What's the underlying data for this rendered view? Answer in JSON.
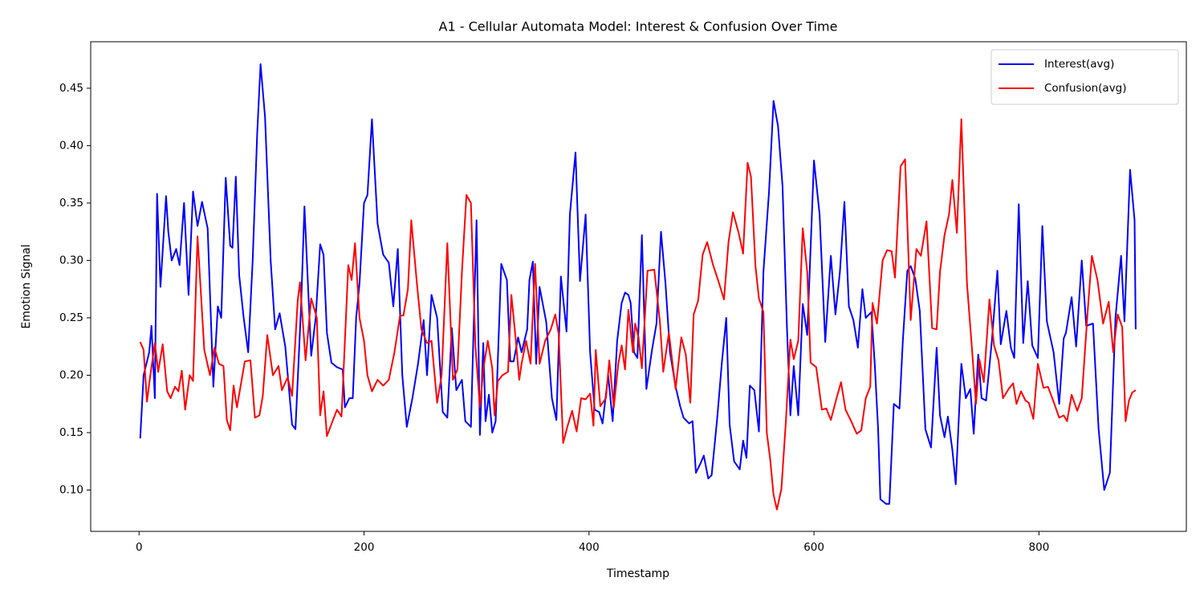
{
  "chart_data": {
    "type": "line",
    "title": "A1 - Cellular Automata Model: Interest & Confusion Over Time",
    "xlabel": "Timestamp",
    "ylabel": "Emotion Signal",
    "xlim": [
      -43,
      931
    ],
    "ylim": [
      0.064,
      0.4905
    ],
    "xticks": [
      0,
      200,
      400,
      600,
      800
    ],
    "yticks": [
      {
        "value": 0.1,
        "label": "0.10"
      },
      {
        "value": 0.15,
        "label": "0.15"
      },
      {
        "value": 0.2,
        "label": "0.20"
      },
      {
        "value": 0.25,
        "label": "0.25"
      },
      {
        "value": 0.3,
        "label": "0.30"
      },
      {
        "value": 0.35,
        "label": "0.35"
      },
      {
        "value": 0.4,
        "label": "0.40"
      },
      {
        "value": 0.45,
        "label": "0.45"
      }
    ],
    "grid": false,
    "legend": "upper right",
    "series": [
      {
        "name": "Interest(avg)",
        "color": "#0000ff",
        "x": [
          1,
          4,
          9,
          11,
          14,
          16,
          19,
          24,
          26,
          29,
          33,
          36,
          40,
          44,
          48,
          52,
          56,
          61,
          66,
          70,
          73,
          77,
          81,
          83,
          86,
          89,
          93,
          97,
          101,
          105,
          108,
          112,
          117,
          121,
          125,
          130,
          136,
          139,
          144,
          147,
          151,
          153,
          157,
          161,
          164,
          167,
          171,
          176,
          181,
          183,
          187,
          190,
          193,
          196,
          200,
          203,
          207,
          212,
          217,
          222,
          226,
          230,
          234,
          238,
          243,
          248,
          253,
          256,
          260,
          265,
          270,
          274,
          278,
          282,
          287,
          290,
          295,
          300,
          303,
          306,
          308,
          311,
          314,
          317,
          322,
          327,
          330,
          333,
          337,
          340,
          345,
          347,
          350,
          353,
          356,
          362,
          367,
          371,
          375,
          380,
          383,
          388,
          392,
          397,
          401,
          405,
          409,
          412,
          417,
          421,
          425,
          429,
          432,
          435,
          437,
          440,
          443,
          447,
          451,
          456,
          460,
          464,
          468,
          472,
          477,
          481,
          484,
          489,
          492,
          495,
          499,
          502,
          506,
          509,
          514,
          518,
          522,
          525,
          529,
          534,
          537,
          540,
          543,
          547,
          551,
          555,
          560,
          564,
          568,
          572,
          576,
          579,
          582,
          586,
          590,
          594,
          600,
          605,
          610,
          615,
          619,
          623,
          627,
          631,
          635,
          639,
          643,
          646,
          651,
          654,
          657,
          659,
          664,
          667,
          671,
          676,
          679,
          683,
          686,
          690,
          694,
          699,
          704,
          709,
          712,
          716,
          719,
          723,
          726,
          731,
          735,
          739,
          742,
          746,
          749,
          753,
          758,
          763,
          766,
          771,
          775,
          778,
          782,
          786,
          790,
          794,
          799,
          803,
          807,
          813,
          818,
          822,
          824,
          829,
          833,
          838,
          842,
          848,
          853,
          858,
          863,
          868,
          873,
          876,
          881,
          885,
          886
        ],
        "values": [
          0.145,
          0.2,
          0.22,
          0.243,
          0.18,
          0.358,
          0.277,
          0.356,
          0.325,
          0.3,
          0.31,
          0.296,
          0.35,
          0.27,
          0.36,
          0.33,
          0.351,
          0.328,
          0.19,
          0.26,
          0.25,
          0.372,
          0.313,
          0.311,
          0.373,
          0.287,
          0.25,
          0.22,
          0.3,
          0.41,
          0.471,
          0.425,
          0.3,
          0.24,
          0.254,
          0.225,
          0.157,
          0.153,
          0.26,
          0.347,
          0.26,
          0.217,
          0.25,
          0.314,
          0.305,
          0.237,
          0.211,
          0.207,
          0.205,
          0.172,
          0.18,
          0.18,
          0.25,
          0.28,
          0.35,
          0.357,
          0.423,
          0.332,
          0.305,
          0.298,
          0.26,
          0.31,
          0.2,
          0.155,
          0.18,
          0.21,
          0.248,
          0.2,
          0.27,
          0.25,
          0.168,
          0.163,
          0.241,
          0.187,
          0.196,
          0.16,
          0.155,
          0.335,
          0.148,
          0.228,
          0.16,
          0.183,
          0.15,
          0.16,
          0.297,
          0.283,
          0.212,
          0.212,
          0.233,
          0.22,
          0.24,
          0.283,
          0.299,
          0.21,
          0.277,
          0.246,
          0.18,
          0.161,
          0.286,
          0.238,
          0.34,
          0.394,
          0.282,
          0.34,
          0.22,
          0.17,
          0.168,
          0.158,
          0.2,
          0.16,
          0.23,
          0.263,
          0.272,
          0.27,
          0.263,
          0.22,
          0.215,
          0.322,
          0.188,
          0.222,
          0.245,
          0.325,
          0.28,
          0.22,
          0.19,
          0.173,
          0.163,
          0.158,
          0.16,
          0.115,
          0.123,
          0.13,
          0.11,
          0.113,
          0.163,
          0.21,
          0.25,
          0.157,
          0.125,
          0.118,
          0.143,
          0.128,
          0.191,
          0.187,
          0.151,
          0.29,
          0.36,
          0.439,
          0.417,
          0.365,
          0.24,
          0.165,
          0.208,
          0.165,
          0.262,
          0.235,
          0.387,
          0.34,
          0.229,
          0.304,
          0.253,
          0.29,
          0.351,
          0.26,
          0.248,
          0.224,
          0.275,
          0.25,
          0.255,
          0.21,
          0.153,
          0.092,
          0.088,
          0.088,
          0.175,
          0.171,
          0.23,
          0.291,
          0.295,
          0.284,
          0.256,
          0.153,
          0.137,
          0.224,
          0.165,
          0.146,
          0.164,
          0.135,
          0.105,
          0.21,
          0.18,
          0.188,
          0.149,
          0.218,
          0.18,
          0.178,
          0.229,
          0.291,
          0.227,
          0.256,
          0.224,
          0.215,
          0.349,
          0.228,
          0.282,
          0.226,
          0.215,
          0.33,
          0.247,
          0.22,
          0.175,
          0.232,
          0.237,
          0.268,
          0.225,
          0.3,
          0.243,
          0.245,
          0.153,
          0.1,
          0.115,
          0.25,
          0.304,
          0.247,
          0.379,
          0.335,
          0.24
        ]
      },
      {
        "name": "Confusion(avg)",
        "color": "#ff0000",
        "x": [
          1,
          4,
          7,
          10,
          14,
          17,
          21,
          25,
          28,
          32,
          35,
          38,
          41,
          45,
          48,
          52,
          58,
          63,
          67,
          71,
          75,
          78,
          81,
          84,
          87,
          94,
          99,
          103,
          107,
          110,
          114,
          119,
          124,
          127,
          132,
          136,
          141,
          143,
          148,
          153,
          158,
          161,
          164,
          167,
          172,
          176,
          180,
          186,
          189,
          192,
          196,
          200,
          203,
          207,
          212,
          217,
          222,
          227,
          232,
          235,
          239,
          242,
          247,
          251,
          256,
          260,
          265,
          269,
          274,
          279,
          283,
          287,
          291,
          295,
          299,
          303,
          306,
          310,
          314,
          316,
          319,
          323,
          328,
          331,
          335,
          338,
          340,
          344,
          348,
          352,
          356,
          361,
          366,
          370,
          373,
          377,
          381,
          385,
          389,
          393,
          397,
          401,
          404,
          406,
          410,
          415,
          418,
          422,
          426,
          429,
          432,
          435,
          439,
          441,
          444,
          447,
          452,
          458,
          463,
          466,
          471,
          477,
          482,
          486,
          490,
          493,
          497,
          501,
          505,
          510,
          515,
          520,
          524,
          528,
          533,
          537,
          541,
          544,
          548,
          551,
          555,
          558,
          561,
          564,
          567,
          571,
          575,
          579,
          582,
          586,
          590,
          594,
          597,
          602,
          607,
          611,
          615,
          620,
          624,
          628,
          633,
          638,
          642,
          646,
          650,
          652,
          656,
          661,
          665,
          669,
          672,
          677,
          681,
          686,
          691,
          695,
          700,
          705,
          709,
          712,
          716,
          720,
          723,
          727,
          731,
          736,
          740,
          744,
          747,
          751,
          756,
          760,
          764,
          768,
          773,
          777,
          780,
          784,
          788,
          791,
          795,
          799,
          804,
          808,
          813,
          818,
          822,
          825,
          829,
          834,
          838,
          843,
          847,
          852,
          857,
          862,
          866,
          870,
          874,
          877,
          880,
          883,
          886
        ],
        "values": [
          0.229,
          0.222,
          0.177,
          0.2,
          0.228,
          0.203,
          0.227,
          0.186,
          0.18,
          0.19,
          0.186,
          0.204,
          0.17,
          0.2,
          0.195,
          0.321,
          0.222,
          0.2,
          0.224,
          0.21,
          0.208,
          0.161,
          0.152,
          0.191,
          0.172,
          0.212,
          0.213,
          0.163,
          0.165,
          0.182,
          0.235,
          0.2,
          0.208,
          0.187,
          0.198,
          0.182,
          0.265,
          0.281,
          0.213,
          0.267,
          0.25,
          0.165,
          0.186,
          0.147,
          0.16,
          0.17,
          0.164,
          0.296,
          0.283,
          0.315,
          0.25,
          0.23,
          0.2,
          0.186,
          0.196,
          0.191,
          0.196,
          0.22,
          0.252,
          0.252,
          0.275,
          0.335,
          0.28,
          0.24,
          0.228,
          0.23,
          0.176,
          0.2,
          0.315,
          0.196,
          0.205,
          0.29,
          0.357,
          0.35,
          0.225,
          0.172,
          0.205,
          0.23,
          0.206,
          0.165,
          0.195,
          0.2,
          0.203,
          0.27,
          0.23,
          0.196,
          0.21,
          0.23,
          0.21,
          0.297,
          0.21,
          0.23,
          0.24,
          0.253,
          0.236,
          0.141,
          0.156,
          0.169,
          0.151,
          0.18,
          0.179,
          0.184,
          0.156,
          0.222,
          0.173,
          0.18,
          0.213,
          0.172,
          0.21,
          0.226,
          0.205,
          0.257,
          0.22,
          0.245,
          0.233,
          0.206,
          0.291,
          0.292,
          0.247,
          0.203,
          0.237,
          0.188,
          0.233,
          0.218,
          0.176,
          0.253,
          0.265,
          0.305,
          0.316,
          0.297,
          0.282,
          0.266,
          0.316,
          0.342,
          0.324,
          0.306,
          0.385,
          0.373,
          0.295,
          0.267,
          0.255,
          0.15,
          0.127,
          0.096,
          0.083,
          0.101,
          0.16,
          0.231,
          0.214,
          0.23,
          0.328,
          0.29,
          0.211,
          0.207,
          0.17,
          0.171,
          0.161,
          0.18,
          0.194,
          0.17,
          0.16,
          0.149,
          0.152,
          0.18,
          0.19,
          0.263,
          0.245,
          0.3,
          0.309,
          0.308,
          0.285,
          0.382,
          0.388,
          0.248,
          0.31,
          0.304,
          0.334,
          0.241,
          0.24,
          0.29,
          0.322,
          0.34,
          0.37,
          0.324,
          0.423,
          0.28,
          0.229,
          0.175,
          0.214,
          0.194,
          0.266,
          0.226,
          0.213,
          0.18,
          0.188,
          0.193,
          0.175,
          0.186,
          0.178,
          0.176,
          0.162,
          0.21,
          0.189,
          0.19,
          0.177,
          0.163,
          0.165,
          0.16,
          0.183,
          0.169,
          0.18,
          0.252,
          0.304,
          0.283,
          0.245,
          0.264,
          0.22,
          0.253,
          0.242,
          0.16,
          0.178,
          0.185,
          0.187
        ]
      }
    ]
  }
}
